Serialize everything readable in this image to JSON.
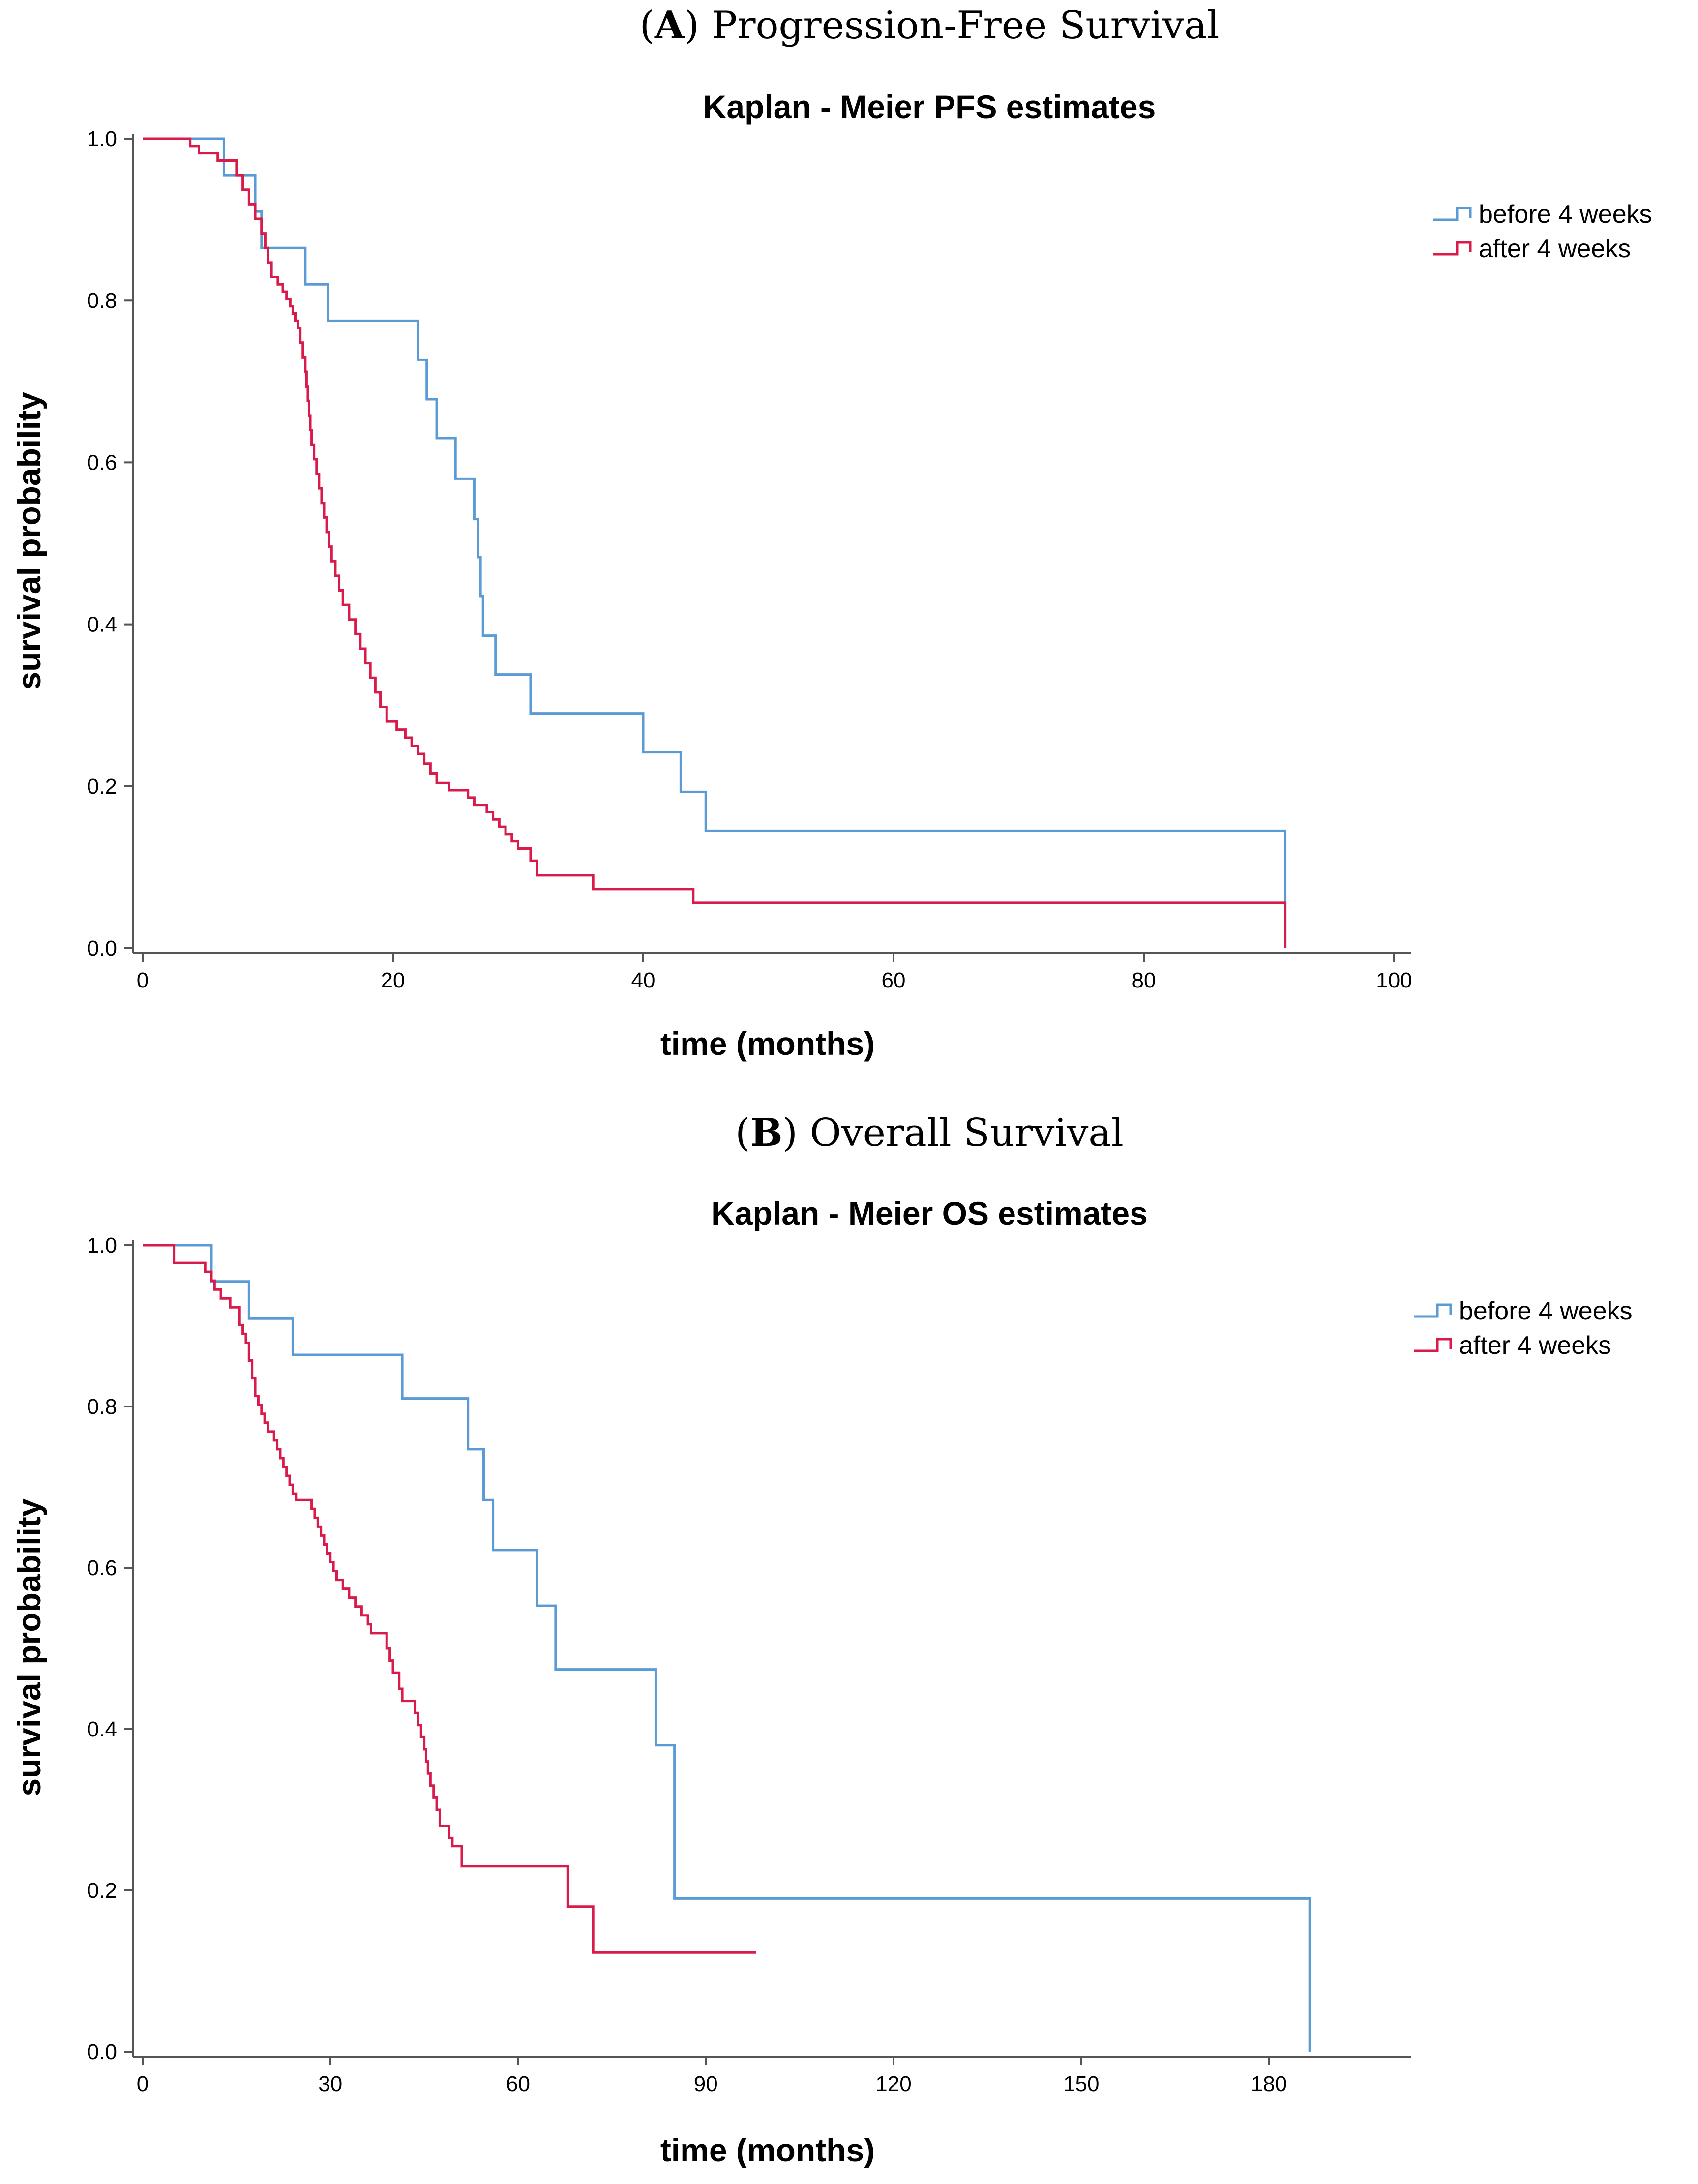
{
  "colors": {
    "before": "#5b9bd5",
    "after": "#d81b4a"
  },
  "chart_data": [
    {
      "type": "line",
      "panel_letter": "A",
      "panel_title": "Progression-Free Survival",
      "title": "Kaplan - Meier PFS estimates",
      "xlabel": "time (months)",
      "ylabel": "survival probability",
      "xlim": [
        0,
        100
      ],
      "ylim": [
        0,
        1
      ],
      "xticks": [
        0,
        20,
        40,
        60,
        80,
        100
      ],
      "xtick_labels": [
        "0",
        "20",
        "40",
        "60",
        "80",
        "100"
      ],
      "yticks": [
        0,
        0.2,
        0.4,
        0.6,
        0.8,
        1.0
      ],
      "ytick_labels": [
        "0.0",
        "0.2",
        "0.4",
        "0.6",
        "0.8",
        "1.0"
      ],
      "legend_position": "top-right",
      "series": [
        {
          "name": "before 4 weeks",
          "color_key": "before",
          "steps": [
            [
              0,
              1.0
            ],
            [
              6.5,
              0.955
            ],
            [
              9,
              0.91
            ],
            [
              9.5,
              0.865
            ],
            [
              13,
              0.82
            ],
            [
              14.8,
              0.775
            ],
            [
              22,
              0.727
            ],
            [
              22.7,
              0.678
            ],
            [
              23.5,
              0.63
            ],
            [
              25,
              0.58
            ],
            [
              26.5,
              0.53
            ],
            [
              26.8,
              0.483
            ],
            [
              27,
              0.435
            ],
            [
              27.2,
              0.386
            ],
            [
              28.2,
              0.338
            ],
            [
              31,
              0.29
            ],
            [
              40,
              0.242
            ],
            [
              43,
              0.193
            ],
            [
              45,
              0.145
            ],
            [
              91.3,
              0.0
            ]
          ],
          "end_x": 91.3
        },
        {
          "name": "after 4 weeks",
          "color_key": "after",
          "steps": [
            [
              0,
              1.0
            ],
            [
              3.8,
              0.991
            ],
            [
              4.5,
              0.982
            ],
            [
              6,
              0.973
            ],
            [
              7.5,
              0.955
            ],
            [
              8,
              0.937
            ],
            [
              8.5,
              0.919
            ],
            [
              9,
              0.901
            ],
            [
              9.5,
              0.883
            ],
            [
              9.8,
              0.865
            ],
            [
              10,
              0.847
            ],
            [
              10.3,
              0.829
            ],
            [
              10.8,
              0.82
            ],
            [
              11.2,
              0.811
            ],
            [
              11.5,
              0.802
            ],
            [
              11.8,
              0.793
            ],
            [
              12,
              0.784
            ],
            [
              12.2,
              0.775
            ],
            [
              12.4,
              0.766
            ],
            [
              12.6,
              0.748
            ],
            [
              12.8,
              0.73
            ],
            [
              13,
              0.712
            ],
            [
              13.1,
              0.694
            ],
            [
              13.2,
              0.676
            ],
            [
              13.3,
              0.658
            ],
            [
              13.4,
              0.64
            ],
            [
              13.5,
              0.622
            ],
            [
              13.7,
              0.604
            ],
            [
              13.9,
              0.586
            ],
            [
              14.1,
              0.568
            ],
            [
              14.3,
              0.55
            ],
            [
              14.5,
              0.532
            ],
            [
              14.7,
              0.514
            ],
            [
              14.9,
              0.496
            ],
            [
              15.1,
              0.478
            ],
            [
              15.4,
              0.46
            ],
            [
              15.7,
              0.442
            ],
            [
              16,
              0.424
            ],
            [
              16.5,
              0.406
            ],
            [
              17,
              0.388
            ],
            [
              17.4,
              0.37
            ],
            [
              17.8,
              0.352
            ],
            [
              18.2,
              0.334
            ],
            [
              18.6,
              0.316
            ],
            [
              19,
              0.298
            ],
            [
              19.5,
              0.28
            ],
            [
              20.3,
              0.27
            ],
            [
              21,
              0.26
            ],
            [
              21.5,
              0.25
            ],
            [
              22,
              0.24
            ],
            [
              22.5,
              0.228
            ],
            [
              23,
              0.216
            ],
            [
              23.5,
              0.204
            ],
            [
              24.5,
              0.195
            ],
            [
              26,
              0.186
            ],
            [
              26.5,
              0.177
            ],
            [
              27.5,
              0.168
            ],
            [
              28,
              0.159
            ],
            [
              28.5,
              0.15
            ],
            [
              29,
              0.141
            ],
            [
              29.5,
              0.132
            ],
            [
              30,
              0.123
            ],
            [
              31,
              0.108
            ],
            [
              31.5,
              0.09
            ],
            [
              36,
              0.073
            ],
            [
              44,
              0.056
            ],
            [
              91.3,
              0.0
            ]
          ],
          "end_x": 91.3
        }
      ]
    },
    {
      "type": "line",
      "panel_letter": "B",
      "panel_title": "Overall Survival",
      "title": "Kaplan - Meier OS estimates",
      "xlabel": "time (months)",
      "ylabel": "survival probability",
      "xlim": [
        0,
        200
      ],
      "ylim": [
        0,
        1
      ],
      "xticks": [
        0,
        30,
        60,
        90,
        120,
        150,
        180
      ],
      "xtick_labels": [
        "0",
        "30",
        "60",
        "90",
        "120",
        "150",
        "180"
      ],
      "yticks": [
        0,
        0.2,
        0.4,
        0.6,
        0.8,
        1.0
      ],
      "ytick_labels": [
        "0.0",
        "0.2",
        "0.4",
        "0.6",
        "0.8",
        "1.0"
      ],
      "legend_position": "top-right",
      "series": [
        {
          "name": "before 4 weeks",
          "color_key": "before",
          "steps": [
            [
              0,
              1.0
            ],
            [
              11,
              0.955
            ],
            [
              17,
              0.909
            ],
            [
              24,
              0.864
            ],
            [
              41.5,
              0.81
            ],
            [
              52,
              0.747
            ],
            [
              54.5,
              0.684
            ],
            [
              56,
              0.622
            ],
            [
              63,
              0.553
            ],
            [
              66,
              0.474
            ],
            [
              82,
              0.38
            ],
            [
              85,
              0.19
            ],
            [
              186.5,
              0.0
            ]
          ],
          "end_x": 186.5
        },
        {
          "name": "after 4 weeks",
          "color_key": "after",
          "steps": [
            [
              0,
              1.0
            ],
            [
              5,
              0.978
            ],
            [
              10,
              0.967
            ],
            [
              11,
              0.956
            ],
            [
              11.5,
              0.945
            ],
            [
              12.5,
              0.934
            ],
            [
              14,
              0.923
            ],
            [
              15.5,
              0.901
            ],
            [
              16,
              0.89
            ],
            [
              16.5,
              0.879
            ],
            [
              17,
              0.857
            ],
            [
              17.5,
              0.835
            ],
            [
              18,
              0.813
            ],
            [
              18.5,
              0.802
            ],
            [
              19,
              0.791
            ],
            [
              19.5,
              0.78
            ],
            [
              20,
              0.769
            ],
            [
              21,
              0.758
            ],
            [
              21.5,
              0.747
            ],
            [
              22,
              0.736
            ],
            [
              22.5,
              0.725
            ],
            [
              23,
              0.714
            ],
            [
              23.5,
              0.703
            ],
            [
              24,
              0.692
            ],
            [
              24.5,
              0.684
            ],
            [
              27,
              0.673
            ],
            [
              27.5,
              0.662
            ],
            [
              28,
              0.651
            ],
            [
              28.5,
              0.64
            ],
            [
              29,
              0.629
            ],
            [
              29.5,
              0.618
            ],
            [
              30,
              0.607
            ],
            [
              30.5,
              0.596
            ],
            [
              31,
              0.585
            ],
            [
              32,
              0.574
            ],
            [
              33,
              0.563
            ],
            [
              34,
              0.552
            ],
            [
              35,
              0.541
            ],
            [
              36,
              0.53
            ],
            [
              36.5,
              0.519
            ],
            [
              39,
              0.5
            ],
            [
              39.5,
              0.485
            ],
            [
              40,
              0.47
            ],
            [
              41,
              0.45
            ],
            [
              41.5,
              0.435
            ],
            [
              43.5,
              0.42
            ],
            [
              44,
              0.405
            ],
            [
              44.5,
              0.39
            ],
            [
              45,
              0.375
            ],
            [
              45.3,
              0.36
            ],
            [
              45.6,
              0.345
            ],
            [
              46,
              0.33
            ],
            [
              46.5,
              0.315
            ],
            [
              47,
              0.3
            ],
            [
              47.5,
              0.28
            ],
            [
              49,
              0.265
            ],
            [
              49.5,
              0.255
            ],
            [
              51,
              0.23
            ],
            [
              68,
              0.18
            ],
            [
              72,
              0.123
            ],
            [
              98,
              0.123
            ]
          ],
          "end_x": 98
        }
      ]
    }
  ]
}
